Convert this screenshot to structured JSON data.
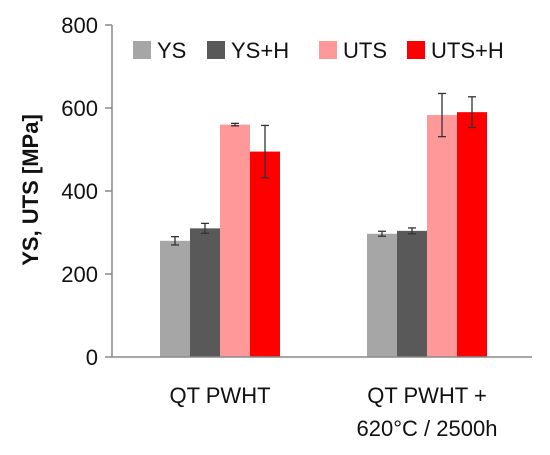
{
  "chart_data": {
    "type": "bar",
    "title": "",
    "xlabel": "",
    "ylabel": "YS, UTS [MPa]",
    "ylim": [
      0,
      800
    ],
    "yticks": [
      0,
      200,
      400,
      600,
      800
    ],
    "grid": false,
    "legend": {
      "placement": "top",
      "columns": 4
    },
    "categories": [
      [
        "QT PWHT"
      ],
      [
        "QT PWHT +",
        "620°C / 2500h"
      ]
    ],
    "series": [
      {
        "name": "YS",
        "color": "#a6a6a6",
        "values": [
          280,
          297
        ],
        "errors": [
          10,
          6
        ]
      },
      {
        "name": "YS+H",
        "color": "#595959",
        "values": [
          310,
          304
        ],
        "errors": [
          12,
          7
        ]
      },
      {
        "name": "UTS",
        "color": "#ff9999",
        "values": [
          560,
          583
        ],
        "errors": [
          3,
          52
        ]
      },
      {
        "name": "UTS+H",
        "color": "#ff0000",
        "values": [
          495,
          590
        ],
        "errors": [
          63,
          37
        ]
      }
    ]
  }
}
